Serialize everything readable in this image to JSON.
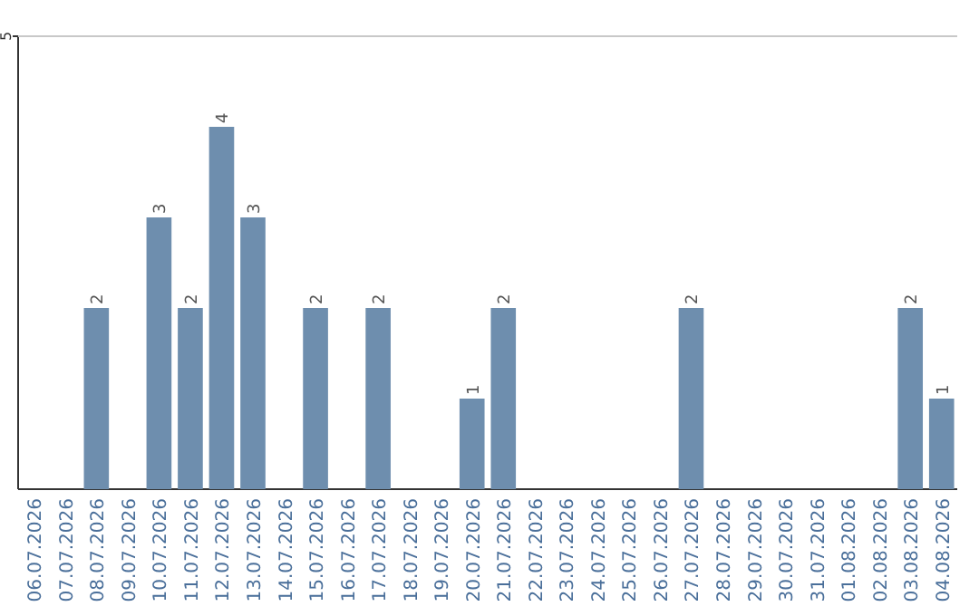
{
  "chart_data": {
    "type": "bar",
    "categories": [
      "06.07.2026",
      "07.07.2026",
      "08.07.2026",
      "09.07.2026",
      "10.07.2026",
      "11.07.2026",
      "12.07.2026",
      "13.07.2026",
      "14.07.2026",
      "15.07.2026",
      "16.07.2026",
      "17.07.2026",
      "18.07.2026",
      "19.07.2026",
      "20.07.2026",
      "21.07.2026",
      "22.07.2026",
      "23.07.2026",
      "24.07.2026",
      "25.07.2026",
      "26.07.2026",
      "27.07.2026",
      "28.07.2026",
      "29.07.2026",
      "30.07.2026",
      "31.07.2026",
      "01.08.2026",
      "02.08.2026",
      "03.08.2026",
      "04.08.2026"
    ],
    "values": [
      0,
      0,
      2,
      0,
      3,
      2,
      4,
      3,
      0,
      2,
      0,
      2,
      0,
      0,
      1,
      2,
      0,
      0,
      0,
      0,
      0,
      2,
      0,
      0,
      0,
      0,
      0,
      0,
      2,
      1
    ],
    "value_labels": [
      null,
      null,
      "2",
      null,
      "3",
      "2",
      "4",
      "3",
      null,
      "2",
      null,
      "2",
      null,
      null,
      "1",
      "2",
      null,
      null,
      null,
      null,
      null,
      "2",
      null,
      null,
      null,
      null,
      null,
      null,
      "2",
      "1"
    ],
    "color": "#6e8eae",
    "ylim": [
      0,
      5
    ],
    "yticks": [
      5
    ],
    "ref_lines": [
      {
        "axis": "y",
        "value": 5,
        "color": "#c8c8c8"
      }
    ]
  }
}
